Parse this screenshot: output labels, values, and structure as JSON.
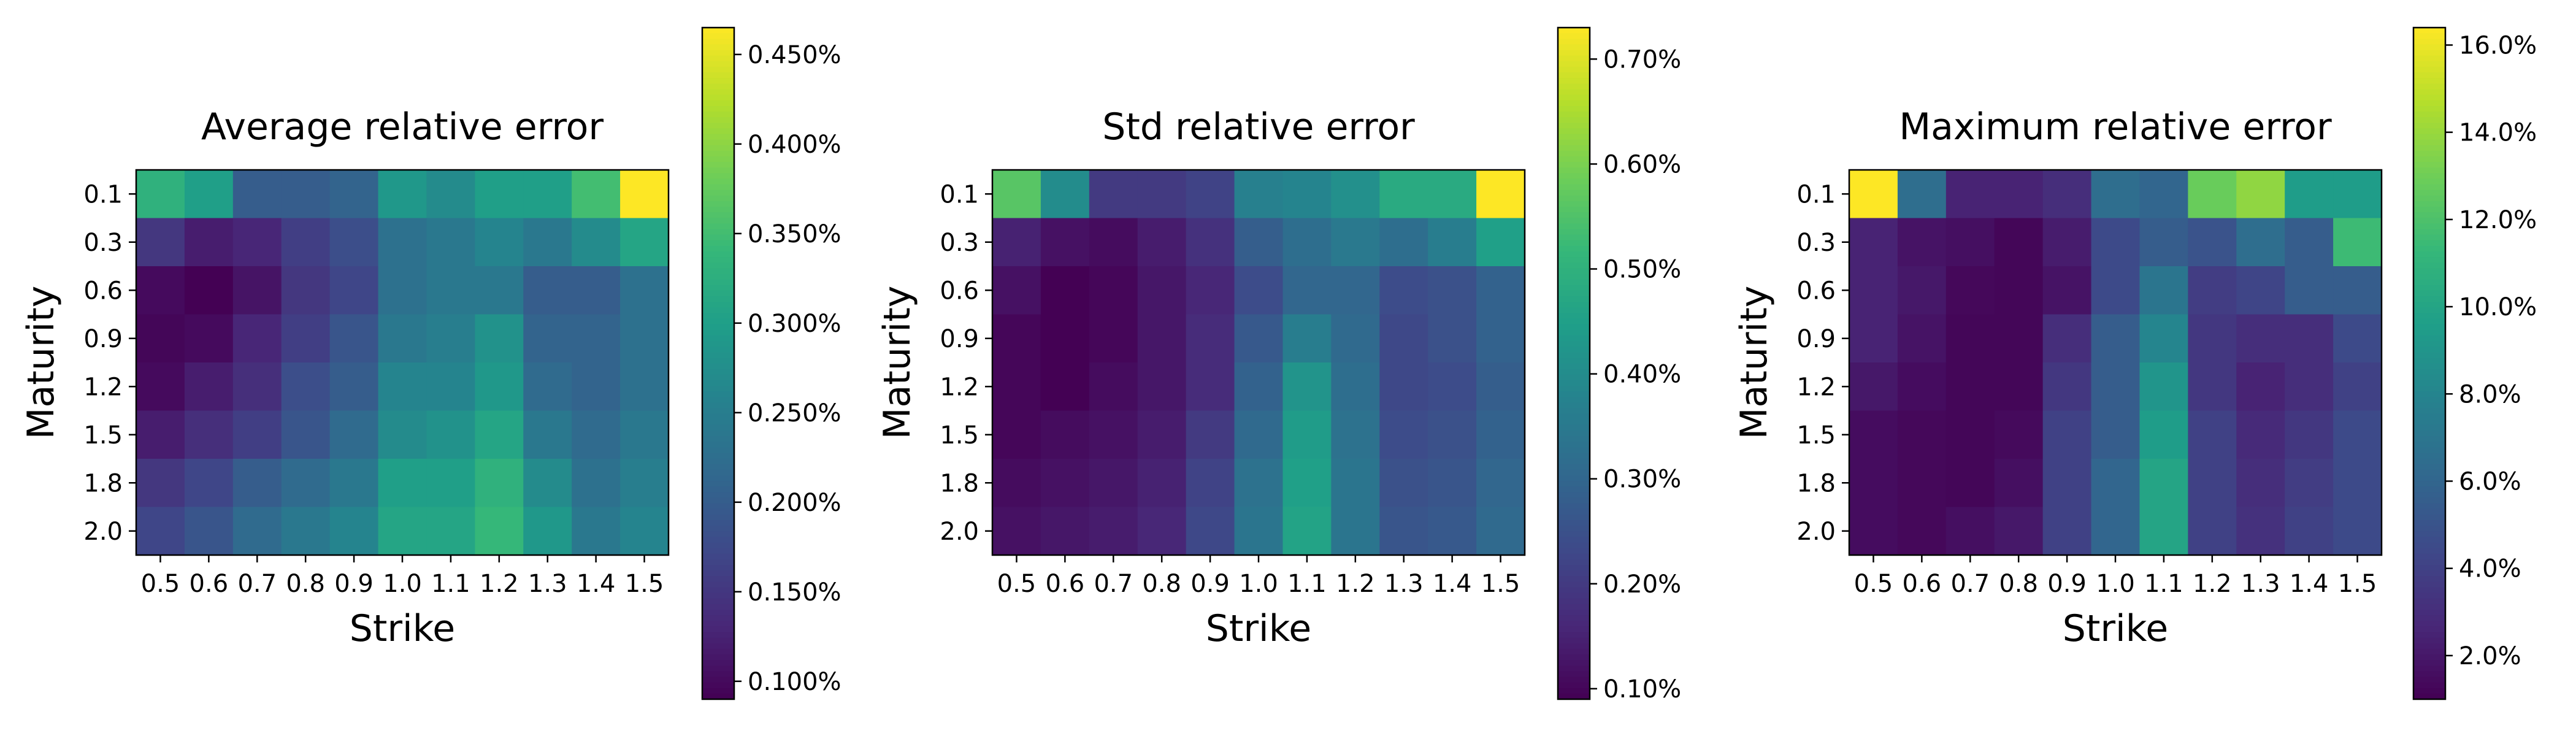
{
  "chart_data": [
    {
      "type": "heatmap",
      "title": "Average relative error",
      "xlabel": "Strike",
      "ylabel": "Maturity",
      "x": [
        "0.5",
        "0.6",
        "0.7",
        "0.8",
        "0.9",
        "1.0",
        "1.1",
        "1.2",
        "1.3",
        "1.4",
        "1.5"
      ],
      "y": [
        "0.1",
        "0.3",
        "0.6",
        "0.9",
        "1.2",
        "1.5",
        "1.8",
        "2.0"
      ],
      "z": [
        [
          0.33,
          0.3,
          0.2,
          0.2,
          0.21,
          0.29,
          0.27,
          0.3,
          0.3,
          0.35,
          0.465
        ],
        [
          0.15,
          0.12,
          0.13,
          0.16,
          0.18,
          0.23,
          0.24,
          0.26,
          0.24,
          0.27,
          0.31
        ],
        [
          0.1,
          0.09,
          0.11,
          0.15,
          0.17,
          0.23,
          0.24,
          0.24,
          0.2,
          0.2,
          0.23
        ],
        [
          0.095,
          0.1,
          0.13,
          0.16,
          0.19,
          0.24,
          0.25,
          0.28,
          0.21,
          0.21,
          0.23
        ],
        [
          0.1,
          0.12,
          0.14,
          0.18,
          0.2,
          0.26,
          0.26,
          0.29,
          0.22,
          0.21,
          0.23
        ],
        [
          0.12,
          0.14,
          0.16,
          0.19,
          0.22,
          0.27,
          0.28,
          0.31,
          0.24,
          0.22,
          0.24
        ],
        [
          0.15,
          0.17,
          0.2,
          0.22,
          0.24,
          0.3,
          0.3,
          0.33,
          0.27,
          0.23,
          0.25
        ],
        [
          0.17,
          0.19,
          0.22,
          0.24,
          0.26,
          0.31,
          0.31,
          0.34,
          0.29,
          0.24,
          0.26
        ]
      ],
      "colorbar": {
        "min": 0.09,
        "max": 0.465,
        "ticks": [
          0.1,
          0.15,
          0.2,
          0.25,
          0.3,
          0.35,
          0.4,
          0.45
        ],
        "tick_labels": [
          "0.100%",
          "0.150%",
          "0.200%",
          "0.250%",
          "0.300%",
          "0.350%",
          "0.400%",
          "0.450%"
        ]
      },
      "colormap": "viridis"
    },
    {
      "type": "heatmap",
      "title": "Std relative error",
      "xlabel": "Strike",
      "ylabel": "Maturity",
      "x": [
        "0.5",
        "0.6",
        "0.7",
        "0.8",
        "0.9",
        "1.0",
        "1.1",
        "1.2",
        "1.3",
        "1.4",
        "1.5"
      ],
      "y": [
        "0.1",
        "0.3",
        "0.6",
        "0.9",
        "1.2",
        "1.5",
        "1.8",
        "2.0"
      ],
      "z": [
        [
          0.56,
          0.4,
          0.2,
          0.2,
          0.22,
          0.37,
          0.38,
          0.41,
          0.48,
          0.48,
          0.73
        ],
        [
          0.15,
          0.12,
          0.11,
          0.14,
          0.18,
          0.28,
          0.32,
          0.35,
          0.32,
          0.36,
          0.45
        ],
        [
          0.12,
          0.09,
          0.1,
          0.13,
          0.16,
          0.24,
          0.3,
          0.3,
          0.24,
          0.25,
          0.29
        ],
        [
          0.1,
          0.09,
          0.1,
          0.13,
          0.17,
          0.27,
          0.36,
          0.31,
          0.23,
          0.25,
          0.29
        ],
        [
          0.1,
          0.09,
          0.11,
          0.13,
          0.17,
          0.29,
          0.42,
          0.32,
          0.23,
          0.24,
          0.28
        ],
        [
          0.1,
          0.11,
          0.12,
          0.14,
          0.2,
          0.31,
          0.44,
          0.33,
          0.24,
          0.25,
          0.29
        ],
        [
          0.11,
          0.12,
          0.13,
          0.15,
          0.22,
          0.33,
          0.45,
          0.34,
          0.25,
          0.26,
          0.3
        ],
        [
          0.12,
          0.13,
          0.14,
          0.16,
          0.23,
          0.34,
          0.46,
          0.34,
          0.26,
          0.27,
          0.31
        ]
      ],
      "colorbar": {
        "min": 0.09,
        "max": 0.73,
        "ticks": [
          0.1,
          0.2,
          0.3,
          0.4,
          0.5,
          0.6,
          0.7
        ],
        "tick_labels": [
          "0.10%",
          "0.20%",
          "0.30%",
          "0.40%",
          "0.50%",
          "0.60%",
          "0.70%"
        ]
      },
      "colormap": "viridis"
    },
    {
      "type": "heatmap",
      "title": "Maximum relative error",
      "xlabel": "Strike",
      "ylabel": "Maturity",
      "x": [
        "0.5",
        "0.6",
        "0.7",
        "0.8",
        "0.9",
        "1.0",
        "1.1",
        "1.2",
        "1.3",
        "1.4",
        "1.5"
      ],
      "y": [
        "0.1",
        "0.3",
        "0.6",
        "0.9",
        "1.2",
        "1.5",
        "1.8",
        "2.0"
      ],
      "z": [
        [
          16.4,
          6.5,
          2.5,
          2.5,
          3.0,
          6.5,
          6.0,
          12.8,
          13.8,
          9.5,
          9.5
        ],
        [
          2.5,
          1.8,
          1.6,
          1.2,
          2.2,
          4.5,
          5.5,
          5.0,
          6.5,
          5.5,
          11.5
        ],
        [
          2.5,
          2.0,
          1.3,
          1.2,
          1.8,
          4.5,
          7.0,
          3.8,
          4.2,
          5.5,
          5.5
        ],
        [
          2.5,
          1.8,
          1.2,
          1.2,
          3.0,
          5.5,
          8.0,
          3.5,
          3.0,
          3.0,
          4.5
        ],
        [
          2.0,
          1.5,
          1.2,
          1.2,
          3.5,
          5.5,
          9.0,
          3.5,
          2.5,
          3.0,
          4.0
        ],
        [
          1.5,
          1.3,
          1.2,
          1.4,
          4.0,
          5.5,
          9.5,
          4.0,
          2.8,
          3.5,
          4.5
        ],
        [
          1.5,
          1.3,
          1.2,
          1.6,
          4.0,
          6.0,
          10.0,
          4.0,
          3.0,
          3.8,
          4.5
        ],
        [
          1.5,
          1.3,
          1.6,
          2.0,
          4.0,
          6.0,
          10.0,
          4.0,
          3.2,
          4.0,
          4.5
        ]
      ],
      "colorbar": {
        "min": 1.0,
        "max": 16.4,
        "ticks": [
          2,
          4,
          6,
          8,
          10,
          12,
          14,
          16
        ],
        "tick_labels": [
          "2.0%",
          "4.0%",
          "6.0%",
          "8.0%",
          "10.0%",
          "12.0%",
          "14.0%",
          "16.0%"
        ]
      },
      "colormap": "viridis"
    }
  ]
}
